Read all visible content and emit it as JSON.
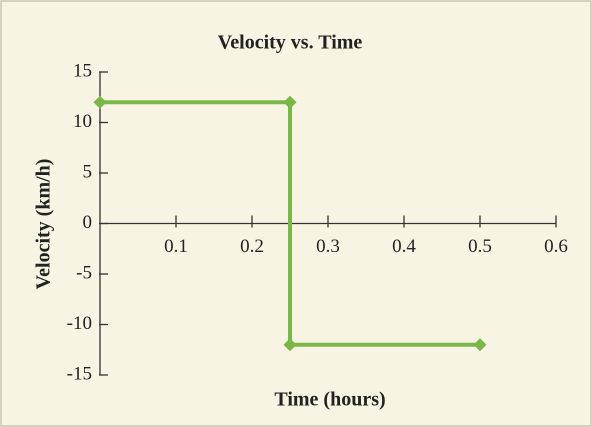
{
  "chart_data": {
    "type": "line",
    "title": "Velocity vs. Time",
    "x_label": "Time (hours)",
    "y_label": "Velocity (km/h)",
    "x": [
      0,
      0.25,
      0.25,
      0.5
    ],
    "series": [
      {
        "color": "#7ab648",
        "values": [
          12,
          12,
          -12,
          -12
        ]
      }
    ],
    "xlim": [
      0,
      0.6
    ],
    "xticks": [
      0.1,
      0.2,
      0.3,
      0.4,
      0.5,
      0.6
    ],
    "ylim": [
      -15,
      15
    ],
    "yticks": [
      -15,
      -10,
      -5,
      0,
      5,
      10,
      15
    ],
    "grid": false
  }
}
